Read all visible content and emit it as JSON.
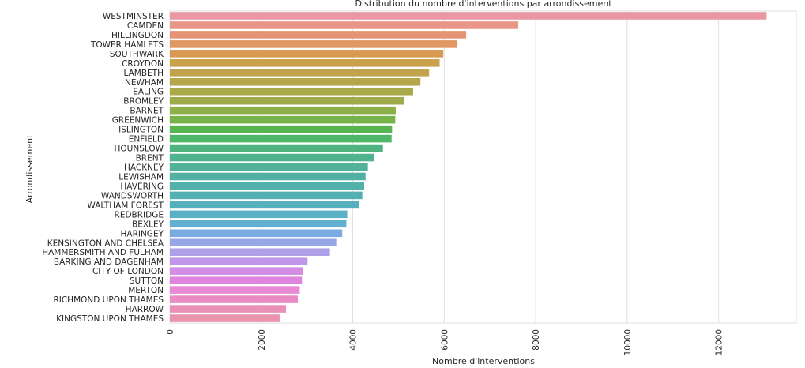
{
  "chart_data": {
    "type": "bar",
    "orientation": "horizontal",
    "title": "Distribution du nombre d'interventions par arrondissement",
    "xlabel": "Nombre d'interventions",
    "ylabel": "Arrondissement",
    "xlim": [
      0,
      13700
    ],
    "x_ticks": [
      0,
      2000,
      4000,
      6000,
      8000,
      10000,
      12000
    ],
    "grid": "vertical",
    "categories": [
      "WESTMINSTER",
      "CAMDEN",
      "HILLINGDON",
      "TOWER HAMLETS",
      "SOUTHWARK",
      "CROYDON",
      "LAMBETH",
      "NEWHAM",
      "EALING",
      "BROMLEY",
      "BARNET",
      "GREENWICH",
      "ISLINGTON",
      "ENFIELD",
      "HOUNSLOW",
      "BRENT",
      "HACKNEY",
      "LEWISHAM",
      "HAVERING",
      "WANDSWORTH",
      "WALTHAM FOREST",
      "REDBRIDGE",
      "BEXLEY",
      "HARINGEY",
      "KENSINGTON AND CHELSEA",
      "HAMMERSMITH AND FULHAM",
      "BARKING AND DAGENHAM",
      "CITY OF LONDON",
      "SUTTON",
      "MERTON",
      "RICHMOND UPON THAMES",
      "HARROW",
      "KINGSTON UPON THAMES"
    ],
    "values": [
      13050,
      7620,
      6480,
      6290,
      5980,
      5900,
      5670,
      5480,
      5320,
      5120,
      4940,
      4930,
      4860,
      4850,
      4660,
      4460,
      4330,
      4280,
      4250,
      4210,
      4140,
      3880,
      3860,
      3770,
      3640,
      3500,
      3010,
      2910,
      2890,
      2840,
      2800,
      2540,
      2400
    ],
    "colors": [
      "#ea96a3",
      "#e9968a",
      "#e59373",
      "#e09762",
      "#d79a50",
      "#cba04d",
      "#c0a34c",
      "#b5a64b",
      "#aaa94a",
      "#9eab4a",
      "#8daf49",
      "#76b249",
      "#57b551",
      "#4db667",
      "#4fb47f",
      "#51b38e",
      "#52b299",
      "#52b1a2",
      "#53b1aa",
      "#54b1b3",
      "#56b0bc",
      "#5ab0c5",
      "#62afd0",
      "#7aaadf",
      "#96a6e6",
      "#ad9fe8",
      "#c195e7",
      "#d38de5",
      "#e085df",
      "#e88ad6",
      "#e98cc6",
      "#ea90b6",
      "#ea93ac"
    ]
  }
}
